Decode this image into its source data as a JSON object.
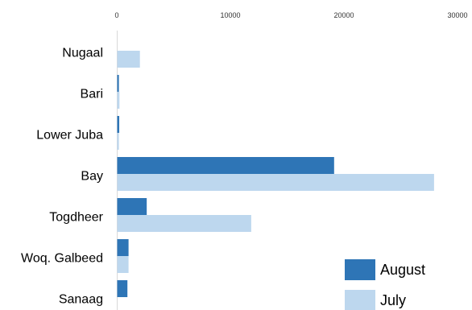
{
  "chart_data": {
    "type": "bar",
    "orientation": "horizontal",
    "categories": [
      "Nugaal",
      "Bari",
      "Lower Juba",
      "Bay",
      "Togdheer",
      "Woq. Galbeed",
      "Sanaag"
    ],
    "series": [
      {
        "name": "August",
        "color": "#2e75b6",
        "values": [
          0,
          150,
          180,
          19100,
          2600,
          1000,
          900
        ]
      },
      {
        "name": "July",
        "color": "#bdd7ee",
        "values": [
          2000,
          200,
          150,
          27900,
          11800,
          1000,
          0
        ]
      }
    ],
    "xticks": [
      "0",
      "10000",
      "20000",
      "30000"
    ],
    "xlim": [
      0,
      30000
    ],
    "xaxis_position": "top",
    "legend_position": "bottom-right",
    "grid": false
  }
}
